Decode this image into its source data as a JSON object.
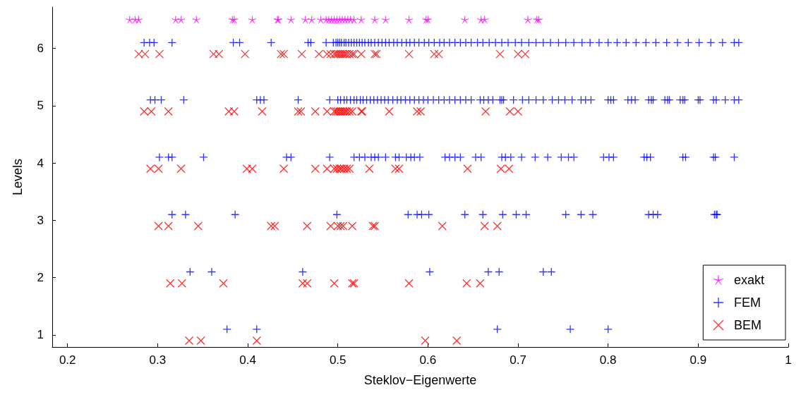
{
  "chart_data": {
    "type": "scatter",
    "xlabel": "Steklov−Eigenwerte",
    "ylabel": "Levels",
    "xlim": [
      0.183,
      1
    ],
    "xticks": [
      0.2,
      0.3,
      0.4,
      0.5,
      0.6,
      0.7,
      0.8,
      0.9,
      1
    ],
    "ylim": [
      0.79,
      6.72
    ],
    "yticks": [
      1,
      2,
      3,
      4,
      5,
      6
    ],
    "grid": false,
    "legend": "bottom right",
    "series": [
      {
        "name": "exakt",
        "color": "#ff00ff",
        "marker": "star",
        "x": [
          0.269,
          0.275,
          0.279,
          0.32,
          0.326,
          0.343,
          0.383,
          0.385,
          0.405,
          0.433,
          0.434,
          0.448,
          0.464,
          0.471,
          0.481,
          0.487,
          0.49,
          0.493,
          0.496,
          0.499,
          0.502,
          0.505,
          0.508,
          0.511,
          0.514,
          0.518,
          0.526,
          0.541,
          0.553,
          0.579,
          0.598,
          0.6,
          0.641,
          0.659,
          0.663,
          0.711,
          0.721,
          0.723
        ],
        "values": [
          6.5,
          6.5,
          6.5,
          6.5,
          6.5,
          6.5,
          6.5,
          6.5,
          6.5,
          6.5,
          6.5,
          6.5,
          6.5,
          6.5,
          6.5,
          6.5,
          6.5,
          6.5,
          6.5,
          6.5,
          6.5,
          6.5,
          6.5,
          6.5,
          6.5,
          6.5,
          6.5,
          6.5,
          6.5,
          6.5,
          6.5,
          6.5,
          6.5,
          6.5,
          6.5,
          6.5,
          6.5,
          6.5
        ]
      },
      {
        "name": "FEM",
        "color": "#0000ff",
        "marker": "plus",
        "x": [
          0.285,
          0.291,
          0.296,
          0.316,
          0.384,
          0.391,
          0.426,
          0.467,
          0.47,
          0.487,
          0.495,
          0.498,
          0.5,
          0.502,
          0.504,
          0.507,
          0.509,
          0.512,
          0.515,
          0.518,
          0.521,
          0.524,
          0.527,
          0.53,
          0.534,
          0.537,
          0.541,
          0.545,
          0.549,
          0.553,
          0.557,
          0.562,
          0.566,
          0.571,
          0.576,
          0.58,
          0.585,
          0.59,
          0.596,
          0.601,
          0.607,
          0.613,
          0.618,
          0.624,
          0.63,
          0.636,
          0.642,
          0.648,
          0.655,
          0.661,
          0.668,
          0.675,
          0.682,
          0.689,
          0.697,
          0.704,
          0.712,
          0.72,
          0.728,
          0.736,
          0.745,
          0.753,
          0.762,
          0.771,
          0.78,
          0.79,
          0.8,
          0.81,
          0.82,
          0.831,
          0.842,
          0.853,
          0.865,
          0.877,
          0.889,
          0.901,
          0.914,
          0.927,
          0.94,
          0.945,
          0.292,
          0.297,
          0.304,
          0.329,
          0.41,
          0.414,
          0.418,
          0.456,
          0.491,
          0.5,
          0.503,
          0.507,
          0.51,
          0.514,
          0.518,
          0.521,
          0.525,
          0.528,
          0.532,
          0.536,
          0.54,
          0.544,
          0.548,
          0.552,
          0.556,
          0.561,
          0.566,
          0.57,
          0.575,
          0.58,
          0.585,
          0.59,
          0.595,
          0.6,
          0.606,
          0.612,
          0.618,
          0.624,
          0.63,
          0.636,
          0.642,
          0.648,
          0.658,
          0.662,
          0.667,
          0.672,
          0.68,
          0.682,
          0.684,
          0.695,
          0.705,
          0.712,
          0.72,
          0.728,
          0.738,
          0.745,
          0.752,
          0.76,
          0.77,
          0.775,
          0.781,
          0.8,
          0.803,
          0.806,
          0.822,
          0.826,
          0.83,
          0.845,
          0.848,
          0.85,
          0.863,
          0.866,
          0.868,
          0.88,
          0.883,
          0.885,
          0.9,
          0.902,
          0.917,
          0.92,
          0.93,
          0.94,
          0.945,
          0.302,
          0.312,
          0.316,
          0.351,
          0.443,
          0.448,
          0.491,
          0.518,
          0.524,
          0.53,
          0.537,
          0.541,
          0.545,
          0.553,
          0.564,
          0.568,
          0.576,
          0.581,
          0.585,
          0.591,
          0.619,
          0.624,
          0.63,
          0.636,
          0.653,
          0.659,
          0.682,
          0.686,
          0.692,
          0.704,
          0.719,
          0.733,
          0.748,
          0.756,
          0.762,
          0.795,
          0.801,
          0.806,
          0.84,
          0.843,
          0.847,
          0.883,
          0.886,
          0.917,
          0.919,
          0.94,
          0.316,
          0.331,
          0.386,
          0.499,
          0.578,
          0.588,
          0.593,
          0.601,
          0.641,
          0.661,
          0.683,
          0.698,
          0.709,
          0.753,
          0.77,
          0.783,
          0.845,
          0.85,
          0.855,
          0.918,
          0.92,
          0.921,
          0.336,
          0.36,
          0.461,
          0.602,
          0.667,
          0.679,
          0.728,
          0.737,
          0.377,
          0.41,
          0.677,
          0.758,
          0.8
        ],
        "values": [
          6.1,
          6.1,
          6.1,
          6.1,
          6.1,
          6.1,
          6.1,
          6.1,
          6.1,
          6.1,
          6.1,
          6.1,
          6.1,
          6.1,
          6.1,
          6.1,
          6.1,
          6.1,
          6.1,
          6.1,
          6.1,
          6.1,
          6.1,
          6.1,
          6.1,
          6.1,
          6.1,
          6.1,
          6.1,
          6.1,
          6.1,
          6.1,
          6.1,
          6.1,
          6.1,
          6.1,
          6.1,
          6.1,
          6.1,
          6.1,
          6.1,
          6.1,
          6.1,
          6.1,
          6.1,
          6.1,
          6.1,
          6.1,
          6.1,
          6.1,
          6.1,
          6.1,
          6.1,
          6.1,
          6.1,
          6.1,
          6.1,
          6.1,
          6.1,
          6.1,
          6.1,
          6.1,
          6.1,
          6.1,
          6.1,
          6.1,
          6.1,
          6.1,
          6.1,
          6.1,
          6.1,
          6.1,
          6.1,
          6.1,
          6.1,
          6.1,
          6.1,
          6.1,
          6.1,
          6.1,
          5.1,
          5.1,
          5.1,
          5.1,
          5.1,
          5.1,
          5.1,
          5.1,
          5.1,
          5.1,
          5.1,
          5.1,
          5.1,
          5.1,
          5.1,
          5.1,
          5.1,
          5.1,
          5.1,
          5.1,
          5.1,
          5.1,
          5.1,
          5.1,
          5.1,
          5.1,
          5.1,
          5.1,
          5.1,
          5.1,
          5.1,
          5.1,
          5.1,
          5.1,
          5.1,
          5.1,
          5.1,
          5.1,
          5.1,
          5.1,
          5.1,
          5.1,
          5.1,
          5.1,
          5.1,
          5.1,
          5.1,
          5.1,
          5.1,
          5.1,
          5.1,
          5.1,
          5.1,
          5.1,
          5.1,
          5.1,
          5.1,
          5.1,
          5.1,
          5.1,
          5.1,
          5.1,
          5.1,
          5.1,
          5.1,
          5.1,
          5.1,
          5.1,
          5.1,
          5.1,
          5.1,
          5.1,
          5.1,
          5.1,
          5.1,
          5.1,
          5.1,
          5.1,
          5.1,
          5.1,
          5.1,
          5.1,
          5.1,
          4.1,
          4.1,
          4.1,
          4.1,
          4.1,
          4.1,
          4.1,
          4.1,
          4.1,
          4.1,
          4.1,
          4.1,
          4.1,
          4.1,
          4.1,
          4.1,
          4.1,
          4.1,
          4.1,
          4.1,
          4.1,
          4.1,
          4.1,
          4.1,
          4.1,
          4.1,
          4.1,
          4.1,
          4.1,
          4.1,
          4.1,
          4.1,
          4.1,
          4.1,
          4.1,
          4.1,
          4.1,
          4.1,
          4.1,
          4.1,
          4.1,
          4.1,
          4.1,
          4.1,
          4.1,
          4.1,
          3.1,
          3.1,
          3.1,
          3.1,
          3.1,
          3.1,
          3.1,
          3.1,
          3.1,
          3.1,
          3.1,
          3.1,
          3.1,
          3.1,
          3.1,
          3.1,
          3.1,
          3.1,
          3.1,
          3.1,
          3.1,
          3.1,
          2.1,
          2.1,
          2.1,
          2.1,
          2.1,
          2.1,
          2.1,
          2.1,
          1.1,
          1.1,
          1.1,
          1.1,
          1.1
        ]
      },
      {
        "name": "BEM",
        "color": "#ff0000",
        "marker": "cross",
        "x": [
          0.279,
          0.286,
          0.302,
          0.362,
          0.368,
          0.397,
          0.437,
          0.44,
          0.46,
          0.479,
          0.488,
          0.492,
          0.496,
          0.498,
          0.5,
          0.502,
          0.504,
          0.506,
          0.508,
          0.51,
          0.513,
          0.516,
          0.518,
          0.526,
          0.541,
          0.543,
          0.579,
          0.607,
          0.612,
          0.68,
          0.7,
          0.708,
          0.285,
          0.293,
          0.312,
          0.379,
          0.385,
          0.416,
          0.456,
          0.459,
          0.475,
          0.488,
          0.496,
          0.498,
          0.5,
          0.502,
          0.504,
          0.506,
          0.508,
          0.51,
          0.513,
          0.516,
          0.526,
          0.527,
          0.557,
          0.588,
          0.592,
          0.664,
          0.691,
          0.7,
          0.292,
          0.301,
          0.326,
          0.399,
          0.405,
          0.44,
          0.475,
          0.488,
          0.496,
          0.499,
          0.502,
          0.504,
          0.507,
          0.51,
          0.513,
          0.535,
          0.564,
          0.568,
          0.644,
          0.681,
          0.69,
          0.301,
          0.312,
          0.345,
          0.426,
          0.43,
          0.466,
          0.492,
          0.5,
          0.503,
          0.506,
          0.516,
          0.539,
          0.541,
          0.616,
          0.663,
          0.677,
          0.314,
          0.327,
          0.373,
          0.461,
          0.466,
          0.496,
          0.516,
          0.518,
          0.579,
          0.643,
          0.658,
          0.335,
          0.348,
          0.41,
          0.597,
          0.632
        ],
        "values": [
          5.9,
          5.9,
          5.9,
          5.9,
          5.9,
          5.9,
          5.9,
          5.9,
          5.9,
          5.9,
          5.9,
          5.9,
          5.9,
          5.9,
          5.9,
          5.9,
          5.9,
          5.9,
          5.9,
          5.9,
          5.9,
          5.9,
          5.9,
          5.9,
          5.9,
          5.9,
          5.9,
          5.9,
          5.9,
          5.9,
          5.9,
          5.9,
          4.9,
          4.9,
          4.9,
          4.9,
          4.9,
          4.9,
          4.9,
          4.9,
          4.9,
          4.9,
          4.9,
          4.9,
          4.9,
          4.9,
          4.9,
          4.9,
          4.9,
          4.9,
          4.9,
          4.9,
          4.9,
          4.9,
          4.9,
          4.9,
          4.9,
          4.9,
          4.9,
          4.9,
          3.9,
          3.9,
          3.9,
          3.9,
          3.9,
          3.9,
          3.9,
          3.9,
          3.9,
          3.9,
          3.9,
          3.9,
          3.9,
          3.9,
          3.9,
          3.9,
          3.9,
          3.9,
          3.9,
          3.9,
          3.9,
          2.9,
          2.9,
          2.9,
          2.9,
          2.9,
          2.9,
          2.9,
          2.9,
          2.9,
          2.9,
          2.9,
          2.9,
          2.9,
          2.9,
          2.9,
          2.9,
          1.9,
          1.9,
          1.9,
          1.9,
          1.9,
          1.9,
          1.9,
          1.9,
          1.9,
          1.9,
          1.9,
          0.9,
          0.9,
          0.9,
          0.9,
          0.9
        ]
      }
    ]
  }
}
